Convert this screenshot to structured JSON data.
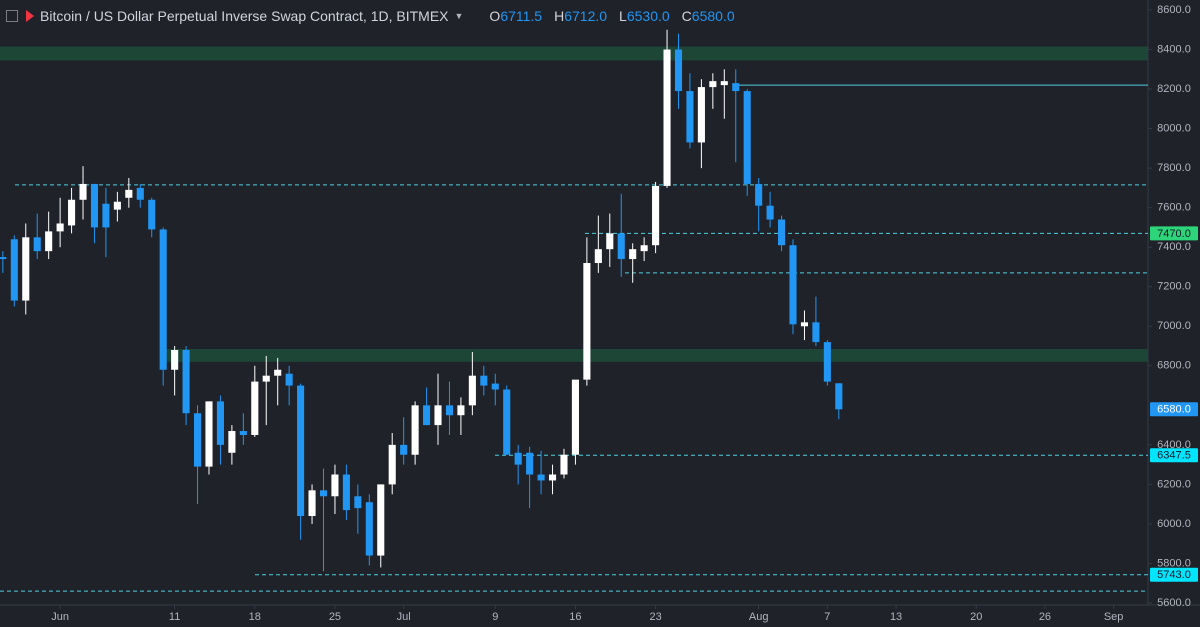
{
  "chart_data": {
    "type": "candlestick",
    "title": "Bitcoin / US Dollar Perpetual Inverse Swap Contract, 1D, BITMEX",
    "header_values": [
      {
        "key": "O",
        "value": "6711.5"
      },
      {
        "key": "H",
        "value": "6712.0"
      },
      {
        "key": "L",
        "value": "6530.0"
      },
      {
        "key": "C",
        "value": "6580.0"
      }
    ],
    "x": [
      -5,
      -4,
      -3,
      -2,
      -1,
      0,
      1,
      2,
      3,
      4,
      5,
      6,
      7,
      8,
      9,
      10,
      11,
      12,
      13,
      14,
      15,
      16,
      17,
      18,
      19,
      20,
      21,
      22,
      23,
      24,
      25,
      26,
      27,
      28,
      29,
      30,
      31,
      32,
      33,
      34,
      35,
      36,
      37,
      38,
      39,
      40,
      41,
      42,
      43,
      44,
      45,
      46,
      47,
      48,
      49,
      50,
      51,
      52,
      53,
      54,
      55,
      56,
      57,
      58,
      59,
      60,
      61,
      62,
      63,
      64,
      65,
      66,
      67,
      68
    ],
    "open": [
      7350,
      7440,
      7130,
      7450,
      7380,
      7480,
      7510,
      7640,
      7720,
      7620,
      7590,
      7650,
      7700,
      7640,
      7490,
      6780,
      6880,
      6560,
      6290,
      6620,
      6360,
      6470,
      6450,
      6720,
      6750,
      6760,
      6700,
      6040,
      6170,
      6140,
      6250,
      6140,
      6110,
      5840,
      6200,
      6400,
      6350,
      6600,
      6500,
      6600,
      6550,
      6600,
      6750,
      6710,
      6680,
      6360,
      6360,
      6250,
      6220,
      6250,
      6350,
      6730,
      7320,
      7390,
      7470,
      7340,
      7380,
      7410,
      7710,
      8400,
      8190,
      7930,
      8210,
      8220,
      8230,
      8190,
      7720,
      7610,
      7540,
      7410,
      7000,
      7020,
      6920,
      6711.5
    ],
    "high": [
      7380,
      7460,
      7520,
      7570,
      7580,
      7650,
      7700,
      7810,
      7720,
      7700,
      7680,
      7750,
      7720,
      7650,
      7500,
      6900,
      6900,
      6600,
      6620,
      6650,
      6500,
      6560,
      6800,
      6850,
      6840,
      6800,
      6710,
      6200,
      6280,
      6300,
      6300,
      6200,
      6150,
      6200,
      6460,
      6540,
      6620,
      6690,
      6760,
      6720,
      6640,
      6870,
      6800,
      6760,
      6700,
      6400,
      6390,
      6370,
      6300,
      6380,
      6720,
      7450,
      7560,
      7570,
      7670,
      7420,
      7450,
      7730,
      8500,
      8480,
      8280,
      8250,
      8280,
      8300,
      8300,
      8200,
      7750,
      7680,
      7560,
      7440,
      7080,
      7150,
      6930,
      6712
    ],
    "low": [
      7270,
      7100,
      7060,
      7340,
      7340,
      7400,
      7470,
      7540,
      7420,
      7350,
      7530,
      7600,
      7600,
      7450,
      6700,
      6650,
      6500,
      6100,
      6250,
      6300,
      6300,
      6400,
      6440,
      6500,
      6600,
      6600,
      5920,
      6000,
      5760,
      6050,
      6020,
      5950,
      5790,
      5780,
      6150,
      6300,
      6300,
      6500,
      6400,
      6450,
      6450,
      6550,
      6650,
      6600,
      6350,
      6200,
      6080,
      6150,
      6150,
      6230,
      6300,
      6700,
      7270,
      7300,
      7250,
      7220,
      7330,
      7370,
      7700,
      8100,
      7900,
      7800,
      8100,
      8050,
      7830,
      7660,
      7480,
      7500,
      7380,
      6960,
      6930,
      6900,
      6700,
      6530
    ],
    "close": [
      7340,
      7130,
      7450,
      7380,
      7480,
      7520,
      7640,
      7720,
      7500,
      7500,
      7630,
      7690,
      7640,
      7490,
      6780,
      6880,
      6560,
      6290,
      6620,
      6400,
      6470,
      6450,
      6720,
      6750,
      6780,
      6700,
      6040,
      6170,
      6140,
      6250,
      6070,
      6080,
      5840,
      6200,
      6400,
      6350,
      6600,
      6500,
      6600,
      6550,
      6600,
      6750,
      6700,
      6680,
      6350,
      6300,
      6250,
      6220,
      6250,
      6350,
      6730,
      7320,
      7390,
      7470,
      7340,
      7390,
      7410,
      7710,
      8400,
      8190,
      7930,
      8210,
      8240,
      8240,
      8190,
      7720,
      7610,
      7540,
      7410,
      7010,
      7020,
      6920,
      6720,
      6580
    ],
    "up_color": "#ffffff",
    "down_color": "#2196f3",
    "xlim": [
      -5.25,
      95
    ],
    "ylim": [
      5600,
      8600
    ],
    "xticks": [
      {
        "value": 0,
        "label": "Jun"
      },
      {
        "value": 10,
        "label": "11"
      },
      {
        "value": 17,
        "label": "18"
      },
      {
        "value": 24,
        "label": "25"
      },
      {
        "value": 30,
        "label": "Jul"
      },
      {
        "value": 38,
        "label": "9"
      },
      {
        "value": 45,
        "label": "16"
      },
      {
        "value": 52,
        "label": "23"
      },
      {
        "value": 61,
        "label": "Aug"
      },
      {
        "value": 67,
        "label": "7"
      },
      {
        "value": 73,
        "label": "13"
      },
      {
        "value": 80,
        "label": "20"
      },
      {
        "value": 86,
        "label": "26"
      },
      {
        "value": 92,
        "label": "Sep"
      }
    ],
    "yticks": [
      {
        "value": 8600,
        "label": "8600.0"
      },
      {
        "value": 8400,
        "label": "8400.0"
      },
      {
        "value": 8200,
        "label": "8200.0"
      },
      {
        "value": 8000,
        "label": "8000.0"
      },
      {
        "value": 7800,
        "label": "7800.0"
      },
      {
        "value": 7600,
        "label": "7600.0"
      },
      {
        "value": 7400,
        "label": "7400.0"
      },
      {
        "value": 7200,
        "label": "7200.0"
      },
      {
        "value": 7000,
        "label": "7000.0"
      },
      {
        "value": 6800,
        "label": "6800.0"
      },
      {
        "value": 6400,
        "label": "6400.0"
      },
      {
        "value": 6200,
        "label": "6200.0"
      },
      {
        "value": 6000,
        "label": "6000.0"
      },
      {
        "value": 5800,
        "label": "5800.0"
      },
      {
        "value": 5600,
        "label": "5600.0"
      }
    ],
    "levels": [
      {
        "value": 8220,
        "style": "solid",
        "color": "#4dd0e1"
      },
      {
        "value": 7715,
        "style": "dashed",
        "color": "#4dd0e1"
      },
      {
        "value": 7470,
        "label": "7470.0",
        "style": "dashed",
        "color": "#4dd0e1",
        "label_color": "#2ed47a"
      },
      {
        "value": 7270,
        "style": "dashed",
        "color": "#4dd0e1"
      },
      {
        "value": 6347.5,
        "label": "6347.5",
        "style": "dashed",
        "color": "#4dd0e1",
        "label_color": "#00e5ff"
      },
      {
        "value": 5743,
        "label": "5743.0",
        "style": "dashed",
        "color": "#4dd0e1",
        "label_color": "#00e5ff"
      },
      {
        "value": 5660,
        "style": "dashed",
        "color": "#4dd0e1"
      }
    ],
    "zones": [
      {
        "range": [
          8345,
          8415
        ],
        "color": "#1d4a38"
      },
      {
        "range": [
          6820,
          6885
        ],
        "color": "#1d4a38"
      }
    ],
    "last_price": {
      "value": 6580,
      "label": "6580.0",
      "color": "#2196f3"
    }
  }
}
